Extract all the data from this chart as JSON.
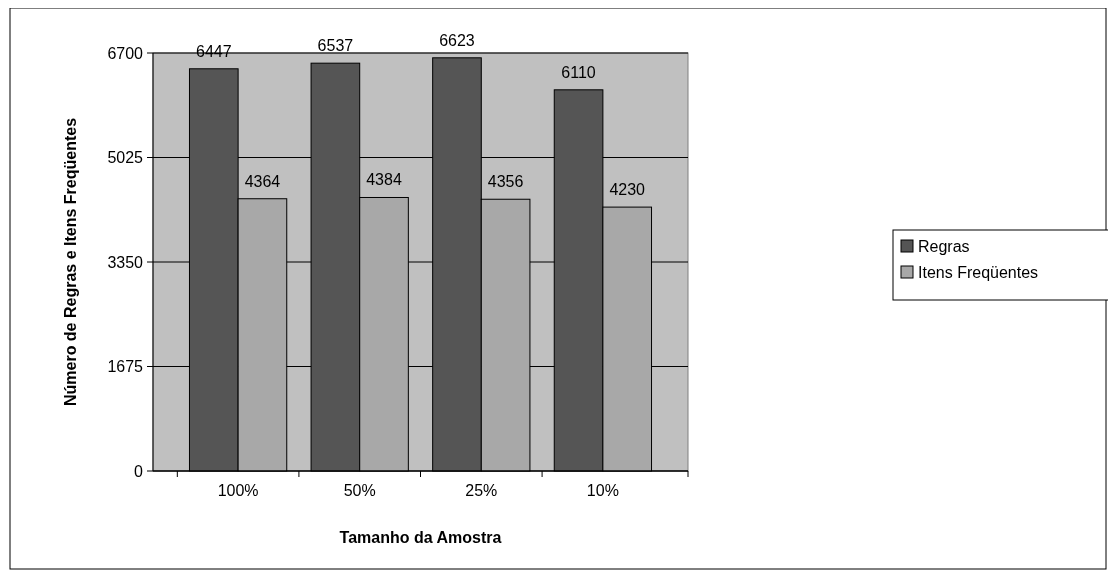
{
  "chart_data": {
    "type": "bar",
    "xlabel": "Tamanho da Amostra",
    "ylabel": "Número de Regras e Itens Freqüentes",
    "categories": [
      "100%",
      "50%",
      "25%",
      "10%"
    ],
    "series": [
      {
        "name": "Regras",
        "color": "#555555",
        "values": [
          6447,
          6537,
          6623,
          6110
        ]
      },
      {
        "name": "Itens Freqüentes",
        "color": "#a8a8a8",
        "values": [
          4364,
          4384,
          4356,
          4230
        ]
      }
    ],
    "ylim": [
      0,
      6700
    ],
    "yticks": [
      0,
      1675,
      3350,
      5025,
      6700
    ],
    "grid": "y",
    "legend": "right",
    "data_labels": true
  }
}
